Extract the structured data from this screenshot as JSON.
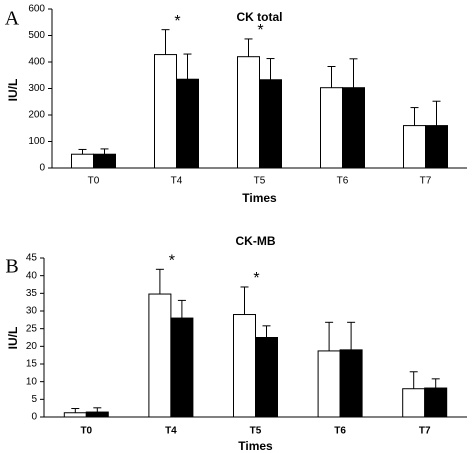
{
  "chart_data": [
    {
      "type": "bar",
      "panel_label": "A",
      "title": "CK total",
      "xlabel": "Times",
      "ylabel": "IU/L",
      "categories": [
        "T0",
        "T4",
        "T5",
        "T6",
        "T7"
      ],
      "series": [
        {
          "color": "#ffffff",
          "values": [
            52,
            428,
            420,
            303,
            160
          ],
          "errors": [
            18,
            94,
            67,
            80,
            68
          ]
        },
        {
          "color": "#000000",
          "values": [
            52,
            335,
            333,
            303,
            160
          ],
          "errors": [
            20,
            95,
            80,
            109,
            92
          ]
        }
      ],
      "ylim": [
        0,
        600
      ],
      "yticks": [
        0,
        100,
        200,
        300,
        400,
        500,
        600
      ],
      "grid": false,
      "annotations": [
        {
          "text": "*",
          "category": "T4"
        },
        {
          "text": "*",
          "category": "T5"
        }
      ]
    },
    {
      "type": "bar",
      "panel_label": "B",
      "title": "CK-MB",
      "xlabel": "Times",
      "ylabel": "IU/L",
      "categories": [
        "T0",
        "T4",
        "T5",
        "T6",
        "T7"
      ],
      "series": [
        {
          "color": "#ffffff",
          "values": [
            1.2,
            34.8,
            29,
            18.7,
            8
          ],
          "errors": [
            1.2,
            7,
            7.8,
            8.1,
            4.8
          ]
        },
        {
          "color": "#000000",
          "values": [
            1.4,
            28,
            22.5,
            19,
            8.2
          ],
          "errors": [
            1.2,
            5,
            3.3,
            7.8,
            2.6
          ]
        }
      ],
      "ylim": [
        0,
        45
      ],
      "yticks": [
        0,
        5,
        10,
        15,
        20,
        25,
        30,
        35,
        40,
        45
      ],
      "grid": false,
      "annotations": [
        {
          "text": "*",
          "category": "T4"
        },
        {
          "text": "*",
          "category": "T5"
        }
      ]
    }
  ]
}
